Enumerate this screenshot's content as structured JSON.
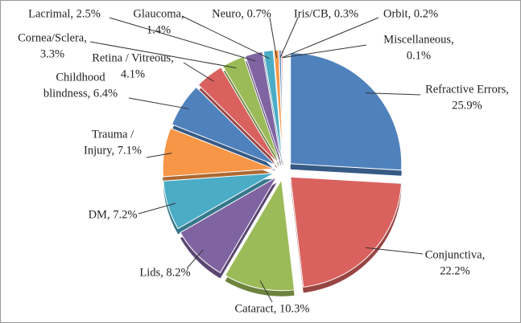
{
  "chart_data": {
    "type": "pie",
    "labels": [
      [
        "Refractive Errors,",
        "25.9%"
      ],
      [
        "Conjunctiva,",
        "22.2%"
      ],
      [
        "Cataract, 10.3%"
      ],
      [
        "Lids, 8.2%"
      ],
      [
        "DM, 7.2%"
      ],
      [
        "Trauma /",
        "Injury, 7.1%"
      ],
      [
        "Childhood",
        "blindness, 6.4%"
      ],
      [
        "Retina / Vitreous,",
        "4.1%"
      ],
      [
        "Cornea/Sclera,",
        "3.3%"
      ],
      [
        "Lacrimal, 2.5%"
      ],
      [
        "Glaucoma,",
        "1.4%"
      ],
      [
        "Neuro, 0.7%"
      ],
      [
        "Iris/CB, 0.3%"
      ],
      [
        "Orbit, 0.2%"
      ],
      [
        "Miscellaneous,",
        "0.1%"
      ]
    ],
    "values": [
      25.9,
      22.2,
      10.3,
      8.2,
      7.2,
      7.1,
      6.4,
      4.1,
      3.3,
      2.5,
      1.4,
      0.7,
      0.3,
      0.2,
      0.1
    ],
    "colors": [
      "#4f81bd",
      "#d9625f",
      "#9bbb59",
      "#8064a2",
      "#4bacc6",
      "#f79646",
      "#4f81bd",
      "#d9625f",
      "#9bbb59",
      "#8064a2",
      "#4bacc6",
      "#f79646",
      "#4f81bd",
      "#d9625f",
      "#9bbb59"
    ]
  }
}
